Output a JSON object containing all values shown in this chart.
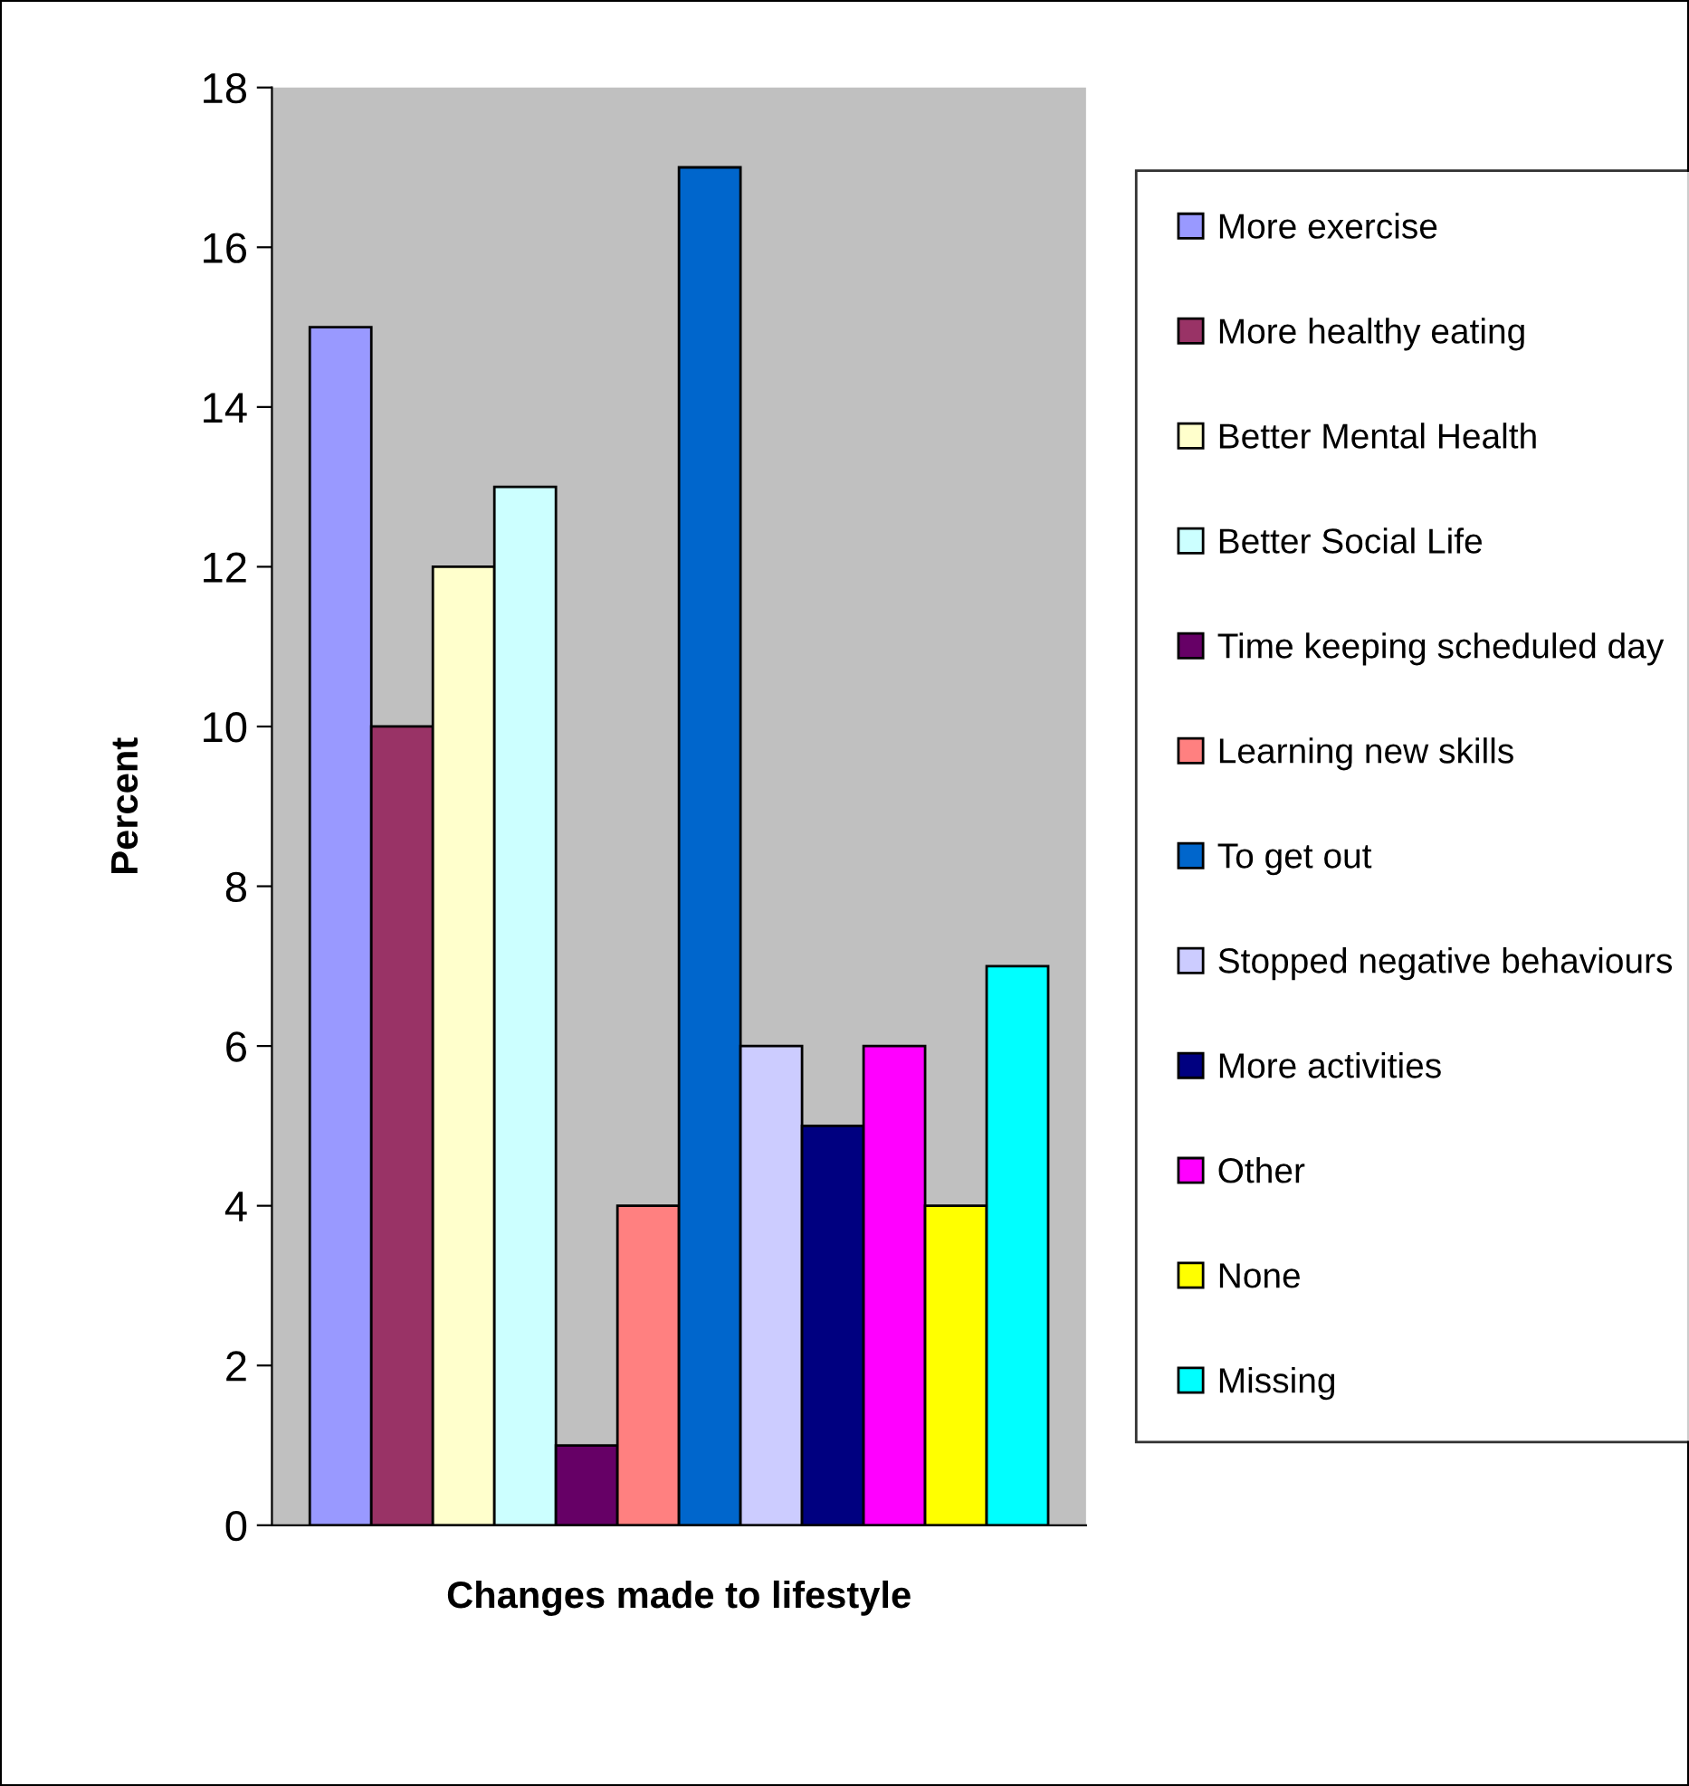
{
  "chart_data": {
    "type": "bar",
    "xlabel": "Changes made to lifestyle",
    "ylabel": "Percent",
    "categories": [
      null
    ],
    "series": [
      {
        "name": "More exercise",
        "color": "#9999ff",
        "values": [
          15
        ]
      },
      {
        "name": "More healthy eating",
        "color": "#993366",
        "values": [
          10
        ]
      },
      {
        "name": "Better Mental Health",
        "color": "#ffffcc",
        "values": [
          12
        ]
      },
      {
        "name": "Better Social Life",
        "color": "#ccffff",
        "values": [
          13
        ]
      },
      {
        "name": "Time keeping scheduled day",
        "color": "#660066",
        "values": [
          1
        ]
      },
      {
        "name": "Learning new skills",
        "color": "#ff8080",
        "values": [
          4
        ]
      },
      {
        "name": "To get out",
        "color": "#0066cc",
        "values": [
          17
        ]
      },
      {
        "name": "Stopped negative behaviours",
        "color": "#ccccff",
        "values": [
          6
        ]
      },
      {
        "name": "More activities",
        "color": "#000080",
        "values": [
          5
        ]
      },
      {
        "name": "Other",
        "color": "#ff00ff",
        "values": [
          6
        ]
      },
      {
        "name": "None",
        "color": "#ffff00",
        "values": [
          4
        ]
      },
      {
        "name": "Missing",
        "color": "#00ffff",
        "values": [
          7
        ]
      }
    ],
    "ylim": [
      0,
      18
    ],
    "yticks": [
      0,
      2,
      4,
      6,
      8,
      10,
      12,
      14,
      16,
      18
    ],
    "tick_labels": "y",
    "grid": false,
    "legend": "right"
  }
}
